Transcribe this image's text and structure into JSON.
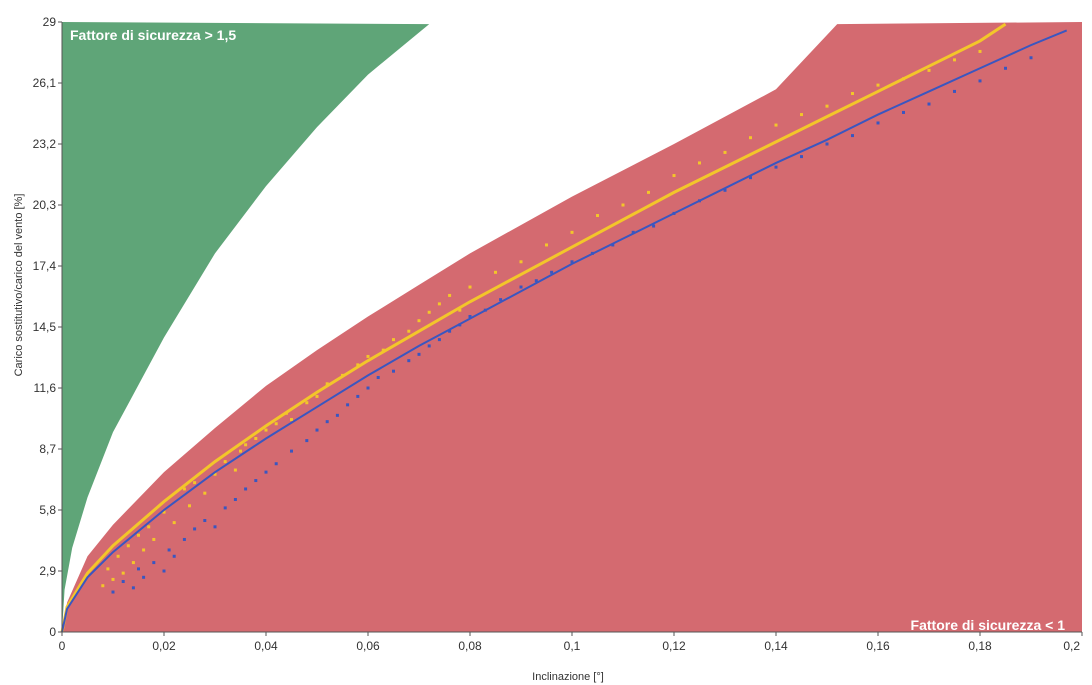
{
  "colors": {
    "safe_zone": "#5fa578",
    "unsafe_zone": "#d46a70",
    "yellow_series": "#f3c62a",
    "blue_series": "#3a56c0",
    "axis": "#555555"
  },
  "chart_data": {
    "type": "scatter",
    "xlabel": "Inclinazione [°]",
    "ylabel": "Carico sostitutivo/carico del vento [%]",
    "xlim": [
      0,
      0.2
    ],
    "ylim": [
      0,
      29
    ],
    "x_ticks": [
      "0",
      "0,02",
      "0,04",
      "0,06",
      "0,08",
      "0,1",
      "0,12",
      "0,14",
      "0,16",
      "0,18",
      "0,2"
    ],
    "y_ticks": [
      "0",
      "2,9",
      "5,8",
      "8,7",
      "11,6",
      "14,5",
      "17,4",
      "20,3",
      "23,2",
      "26,1",
      "29"
    ],
    "grid": false,
    "annotations": [
      {
        "text": "Fattore di sicurezza > 1,5",
        "zone": "safe",
        "placement": "top-left"
      },
      {
        "text": "Fattore di sicurezza < 1",
        "zone": "unsafe",
        "placement": "bottom-right"
      }
    ],
    "zones": [
      {
        "name": "safe",
        "color": "#5fa578",
        "boundary": [
          [
            0,
            0
          ],
          [
            0.0005,
            2.0
          ],
          [
            0.002,
            4.0
          ],
          [
            0.005,
            6.4
          ],
          [
            0.01,
            9.5
          ],
          [
            0.02,
            14.0
          ],
          [
            0.03,
            18.0
          ],
          [
            0.04,
            21.2
          ],
          [
            0.05,
            24.0
          ],
          [
            0.06,
            26.5
          ],
          [
            0.072,
            28.9
          ]
        ]
      },
      {
        "name": "unsafe",
        "color": "#d46a70",
        "boundary": [
          [
            0,
            0
          ],
          [
            0.001,
            1.4
          ],
          [
            0.005,
            3.6
          ],
          [
            0.01,
            5.1
          ],
          [
            0.02,
            7.6
          ],
          [
            0.03,
            9.7
          ],
          [
            0.04,
            11.7
          ],
          [
            0.05,
            13.4
          ],
          [
            0.06,
            15.0
          ],
          [
            0.07,
            16.5
          ],
          [
            0.08,
            18.0
          ],
          [
            0.1,
            20.7
          ],
          [
            0.12,
            23.2
          ],
          [
            0.14,
            25.8
          ],
          [
            0.152,
            28.9
          ]
        ]
      }
    ],
    "series": [
      {
        "kind": "line",
        "color": "#f3c62a",
        "x": [
          0,
          0.001,
          0.005,
          0.01,
          0.02,
          0.03,
          0.04,
          0.05,
          0.06,
          0.07,
          0.08,
          0.09,
          0.1,
          0.11,
          0.12,
          0.13,
          0.14,
          0.15,
          0.16,
          0.17,
          0.18,
          0.185
        ],
        "y": [
          0,
          1.2,
          2.8,
          4.1,
          6.2,
          8.1,
          9.8,
          11.4,
          12.9,
          14.3,
          15.7,
          17.0,
          18.3,
          19.6,
          20.9,
          22.1,
          23.3,
          24.5,
          25.7,
          26.9,
          28.1,
          28.9
        ]
      },
      {
        "kind": "line",
        "color": "#3a56c0",
        "x": [
          0,
          0.001,
          0.005,
          0.01,
          0.02,
          0.03,
          0.04,
          0.05,
          0.06,
          0.07,
          0.08,
          0.09,
          0.1,
          0.11,
          0.12,
          0.13,
          0.14,
          0.15,
          0.16,
          0.17,
          0.18,
          0.19,
          0.197
        ],
        "y": [
          0,
          1.1,
          2.6,
          3.8,
          5.8,
          7.6,
          9.2,
          10.7,
          12.2,
          13.6,
          14.9,
          16.2,
          17.5,
          18.7,
          19.9,
          21.1,
          22.3,
          23.4,
          24.6,
          25.7,
          26.8,
          27.9,
          28.6
        ]
      },
      {
        "kind": "points",
        "color": "#f3c62a",
        "x": [
          0.008,
          0.009,
          0.01,
          0.011,
          0.012,
          0.013,
          0.014,
          0.015,
          0.016,
          0.017,
          0.018,
          0.02,
          0.022,
          0.024,
          0.025,
          0.026,
          0.028,
          0.03,
          0.032,
          0.034,
          0.035,
          0.036,
          0.038,
          0.04,
          0.042,
          0.044,
          0.045,
          0.048,
          0.05,
          0.052,
          0.055,
          0.058,
          0.06,
          0.063,
          0.065,
          0.068,
          0.07,
          0.072,
          0.074,
          0.076,
          0.078,
          0.08,
          0.085,
          0.09,
          0.095,
          0.1,
          0.105,
          0.11,
          0.115,
          0.12,
          0.125,
          0.13,
          0.135,
          0.14,
          0.145,
          0.15,
          0.155,
          0.16,
          0.165,
          0.17,
          0.175,
          0.18
        ],
        "y": [
          2.2,
          3.0,
          2.5,
          3.6,
          2.8,
          4.1,
          3.3,
          4.6,
          3.9,
          5.0,
          4.4,
          5.7,
          5.2,
          6.8,
          6.0,
          7.1,
          6.6,
          7.5,
          8.1,
          7.7,
          8.6,
          8.9,
          9.2,
          9.6,
          9.9,
          10.4,
          10.1,
          10.9,
          11.2,
          11.8,
          12.2,
          12.7,
          13.1,
          13.4,
          13.9,
          14.3,
          14.8,
          15.2,
          15.6,
          16.0,
          15.3,
          16.4,
          17.1,
          17.6,
          18.4,
          19.0,
          19.8,
          20.3,
          20.9,
          21.7,
          22.3,
          22.8,
          23.5,
          24.1,
          24.6,
          25.0,
          25.6,
          26.0,
          26.3,
          26.7,
          27.2,
          27.6
        ]
      },
      {
        "kind": "points",
        "color": "#3a56c0",
        "x": [
          0.01,
          0.012,
          0.014,
          0.015,
          0.016,
          0.018,
          0.02,
          0.021,
          0.022,
          0.024,
          0.026,
          0.028,
          0.03,
          0.032,
          0.034,
          0.036,
          0.038,
          0.04,
          0.042,
          0.045,
          0.048,
          0.05,
          0.052,
          0.054,
          0.056,
          0.058,
          0.06,
          0.062,
          0.065,
          0.068,
          0.07,
          0.072,
          0.074,
          0.076,
          0.078,
          0.08,
          0.083,
          0.086,
          0.09,
          0.093,
          0.096,
          0.1,
          0.104,
          0.108,
          0.112,
          0.116,
          0.12,
          0.125,
          0.13,
          0.135,
          0.14,
          0.145,
          0.15,
          0.155,
          0.16,
          0.165,
          0.17,
          0.175,
          0.18,
          0.185,
          0.19
        ],
        "y": [
          1.9,
          2.4,
          2.1,
          3.0,
          2.6,
          3.3,
          2.9,
          3.9,
          3.6,
          4.4,
          4.9,
          5.3,
          5.0,
          5.9,
          6.3,
          6.8,
          7.2,
          7.6,
          8.0,
          8.6,
          9.1,
          9.6,
          10.0,
          10.3,
          10.8,
          11.2,
          11.6,
          12.1,
          12.4,
          12.9,
          13.2,
          13.6,
          13.9,
          14.3,
          14.6,
          15.0,
          15.3,
          15.8,
          16.4,
          16.7,
          17.1,
          17.6,
          18.0,
          18.4,
          19.0,
          19.3,
          19.9,
          20.5,
          21.0,
          21.6,
          22.1,
          22.6,
          23.2,
          23.6,
          24.2,
          24.7,
          25.1,
          25.7,
          26.2,
          26.8,
          27.3
        ]
      }
    ]
  }
}
